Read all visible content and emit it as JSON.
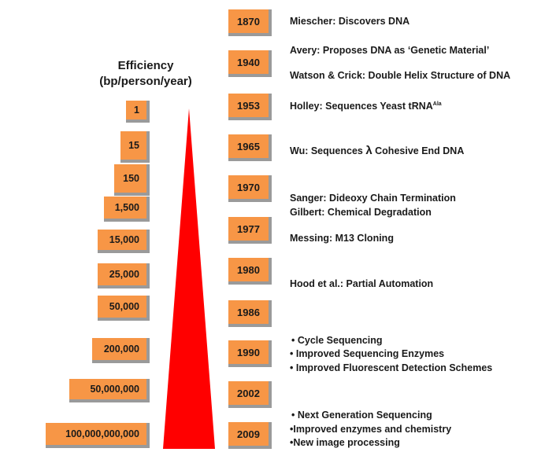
{
  "title": {
    "line1": "Efficiency",
    "line2": "(bp/person/year)"
  },
  "efficiency": [
    "1",
    "15",
    "150",
    "1,500",
    "15,000",
    "25,000",
    "50,000",
    "200,000",
    "50,000,000",
    "100,000,000,000"
  ],
  "years": [
    "1870",
    "1940",
    "1953",
    "1965",
    "1970",
    "1977",
    "1980",
    "1986",
    "1990",
    "2002",
    "2009"
  ],
  "events": {
    "miescher": "Miescher:  Discovers DNA",
    "avery": "Avery:  Proposes DNA as ‘Genetic Material’",
    "watson": "Watson & Crick:  Double Helix Structure of DNA",
    "holley": "Holley:  Sequences Yeast tRNA",
    "holley_sup": "Ala",
    "wu_pre": "Wu:  Sequences ",
    "wu_lambda": "λ",
    "wu_post": " Cohesive End DNA",
    "sanger": "Sanger:  Dideoxy Chain Termination",
    "gilbert": "Gilbert:  Chemical Degradation",
    "messing": "Messing:  M13 Cloning",
    "hood": "Hood et al.:  Partial Automation",
    "b1990_1": "• Cycle Sequencing",
    "b1990_2": "• Improved Sequencing Enzymes",
    "b1990_3": "• Improved Fluorescent Detection Schemes",
    "b2009_1": "• Next Generation Sequencing",
    "b2009_2": "•Improved enzymes and chemistry",
    "b2009_3": "•New image processing"
  },
  "colors": {
    "box_fill": "#f79646",
    "box_shadow": "#9a9a9a",
    "triangle": "#ff0000"
  }
}
